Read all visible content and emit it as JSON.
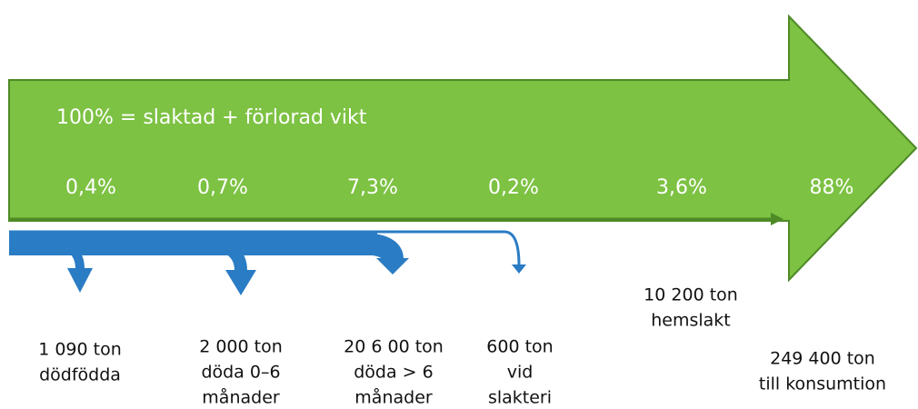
{
  "header": {
    "title": "100% = slaktad + förlorad vikt"
  },
  "flows": [
    {
      "percent": "0,4%",
      "label": [
        "1 090 ton",
        "dödfödda"
      ]
    },
    {
      "percent": "0,7%",
      "label": [
        "2 000 ton",
        "döda 0–6",
        "månader"
      ]
    },
    {
      "percent": "7,3%",
      "label": [
        "20 6 00 ton",
        "döda > 6",
        "månader"
      ]
    },
    {
      "percent": "0,2%",
      "label": [
        "600 ton",
        "vid",
        "slakteri"
      ]
    },
    {
      "percent": "3,6%",
      "label": [
        "10 200 ton",
        "hemslakt"
      ]
    },
    {
      "percent": "88%",
      "label": [
        "249 400 ton",
        "till konsumtion"
      ]
    }
  ]
}
